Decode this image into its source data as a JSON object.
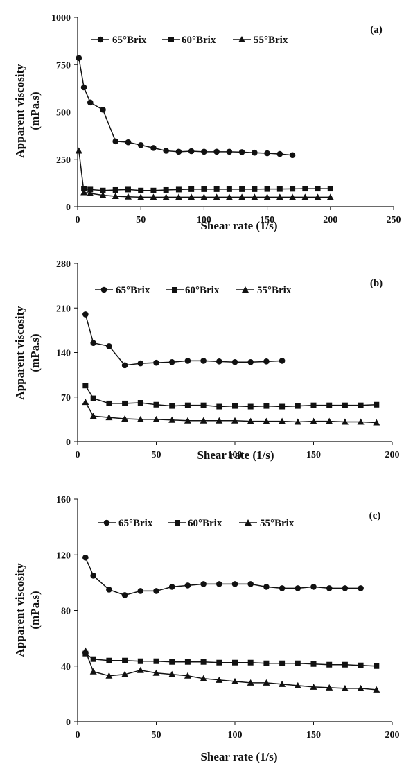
{
  "chart_data": [
    {
      "type": "line",
      "panel_label": "(a)",
      "xlabel": "Shear rate (1/s)",
      "ylabel": [
        "Apparent  viscosity",
        "(mPa.s)"
      ],
      "xlim": [
        0,
        250
      ],
      "ylim": [
        0,
        1000
      ],
      "xticks": [
        "0",
        "50",
        "100",
        "150",
        "200",
        "250"
      ],
      "yticks": [
        "0",
        "250",
        "500",
        "750",
        "1000"
      ],
      "grid": false,
      "legend_position": "top",
      "series": [
        {
          "name": "65°Brix",
          "marker": "circle",
          "x": [
            1,
            5,
            10,
            20,
            30,
            40,
            50,
            60,
            70,
            80,
            90,
            100,
            110,
            120,
            130,
            140,
            150,
            160,
            170
          ],
          "y": [
            785,
            630,
            550,
            512,
            345,
            340,
            325,
            310,
            295,
            290,
            293,
            290,
            290,
            290,
            288,
            285,
            282,
            278,
            272
          ]
        },
        {
          "name": "60°Brix",
          "marker": "square",
          "x": [
            5,
            10,
            20,
            30,
            40,
            50,
            60,
            70,
            80,
            90,
            100,
            110,
            120,
            130,
            140,
            150,
            160,
            170,
            180,
            190,
            200
          ],
          "y": [
            95,
            90,
            85,
            88,
            90,
            85,
            85,
            88,
            90,
            92,
            92,
            92,
            92,
            92,
            92,
            93,
            93,
            94,
            95,
            95,
            95
          ]
        },
        {
          "name": "55°Brix",
          "marker": "triangle",
          "x": [
            1,
            5,
            10,
            20,
            30,
            40,
            50,
            60,
            70,
            80,
            90,
            100,
            110,
            120,
            130,
            140,
            150,
            160,
            170,
            180,
            190,
            200
          ],
          "y": [
            295,
            75,
            70,
            60,
            55,
            52,
            50,
            50,
            50,
            50,
            50,
            50,
            50,
            50,
            50,
            50,
            50,
            50,
            50,
            50,
            50,
            50
          ]
        }
      ]
    },
    {
      "type": "line",
      "panel_label": "(b)",
      "xlabel": "Shear rate (1/s)",
      "ylabel": [
        "Apparent  viscosity",
        "(mPa.s)"
      ],
      "xlim": [
        0,
        200
      ],
      "ylim": [
        0,
        280
      ],
      "xticks": [
        "0",
        "50",
        "100",
        "150",
        "200"
      ],
      "yticks": [
        "0",
        "70",
        "140",
        "210",
        "280"
      ],
      "grid": false,
      "legend_position": "top",
      "series": [
        {
          "name": "65°Brix",
          "marker": "circle",
          "x": [
            5,
            10,
            20,
            30,
            40,
            50,
            60,
            70,
            80,
            90,
            100,
            110,
            120,
            130
          ],
          "y": [
            200,
            155,
            150,
            120,
            123,
            124,
            125,
            127,
            127,
            126,
            125,
            125,
            126,
            127
          ]
        },
        {
          "name": "60°Brix",
          "marker": "square",
          "x": [
            5,
            10,
            20,
            30,
            40,
            50,
            60,
            70,
            80,
            90,
            100,
            110,
            120,
            130,
            140,
            150,
            160,
            170,
            180,
            190
          ],
          "y": [
            88,
            68,
            60,
            60,
            61,
            58,
            56,
            57,
            57,
            55,
            56,
            55,
            56,
            55,
            56,
            57,
            57,
            57,
            57,
            58
          ]
        },
        {
          "name": "55°Brix",
          "marker": "triangle",
          "x": [
            5,
            10,
            20,
            30,
            40,
            50,
            60,
            70,
            80,
            90,
            100,
            110,
            120,
            130,
            140,
            150,
            160,
            170,
            180,
            190
          ],
          "y": [
            62,
            40,
            38,
            36,
            35,
            35,
            34,
            33,
            33,
            33,
            33,
            32,
            32,
            32,
            31,
            32,
            32,
            31,
            31,
            30
          ]
        }
      ]
    },
    {
      "type": "line",
      "panel_label": "(c)",
      "xlabel": "Shear rate (1/s)",
      "ylabel": [
        "Apparent  viscosity",
        "(mPa.s)"
      ],
      "xlim": [
        0,
        200
      ],
      "ylim": [
        0,
        160
      ],
      "xticks": [
        "0",
        "50",
        "100",
        "150",
        "200"
      ],
      "yticks": [
        "0",
        "40",
        "80",
        "120",
        "160"
      ],
      "grid": false,
      "legend_position": "top",
      "series": [
        {
          "name": "65°Brix",
          "marker": "circle",
          "x": [
            5,
            10,
            20,
            30,
            40,
            50,
            60,
            70,
            80,
            90,
            100,
            110,
            120,
            130,
            140,
            150,
            160,
            170,
            180
          ],
          "y": [
            118,
            105,
            95,
            91,
            94,
            94,
            97,
            98,
            99,
            99,
            99,
            99,
            97,
            96,
            96,
            97,
            96,
            96,
            96
          ]
        },
        {
          "name": "60°Brix",
          "marker": "square",
          "x": [
            5,
            10,
            20,
            30,
            40,
            50,
            60,
            70,
            80,
            90,
            100,
            110,
            120,
            130,
            140,
            150,
            160,
            170,
            180,
            190
          ],
          "y": [
            49,
            45,
            44,
            44,
            43.5,
            43.5,
            43,
            43,
            43,
            42.5,
            42.5,
            42.5,
            42,
            42,
            42,
            41.5,
            41,
            41,
            40.5,
            40
          ]
        },
        {
          "name": "55°Brix",
          "marker": "triangle",
          "x": [
            5,
            10,
            20,
            30,
            40,
            50,
            60,
            70,
            80,
            90,
            100,
            110,
            120,
            130,
            140,
            150,
            160,
            170,
            180,
            190
          ],
          "y": [
            51,
            36,
            33,
            34,
            37,
            35,
            34,
            33,
            31,
            30,
            29,
            28,
            28,
            27,
            26,
            25,
            24.5,
            24,
            24,
            23
          ]
        }
      ]
    }
  ]
}
